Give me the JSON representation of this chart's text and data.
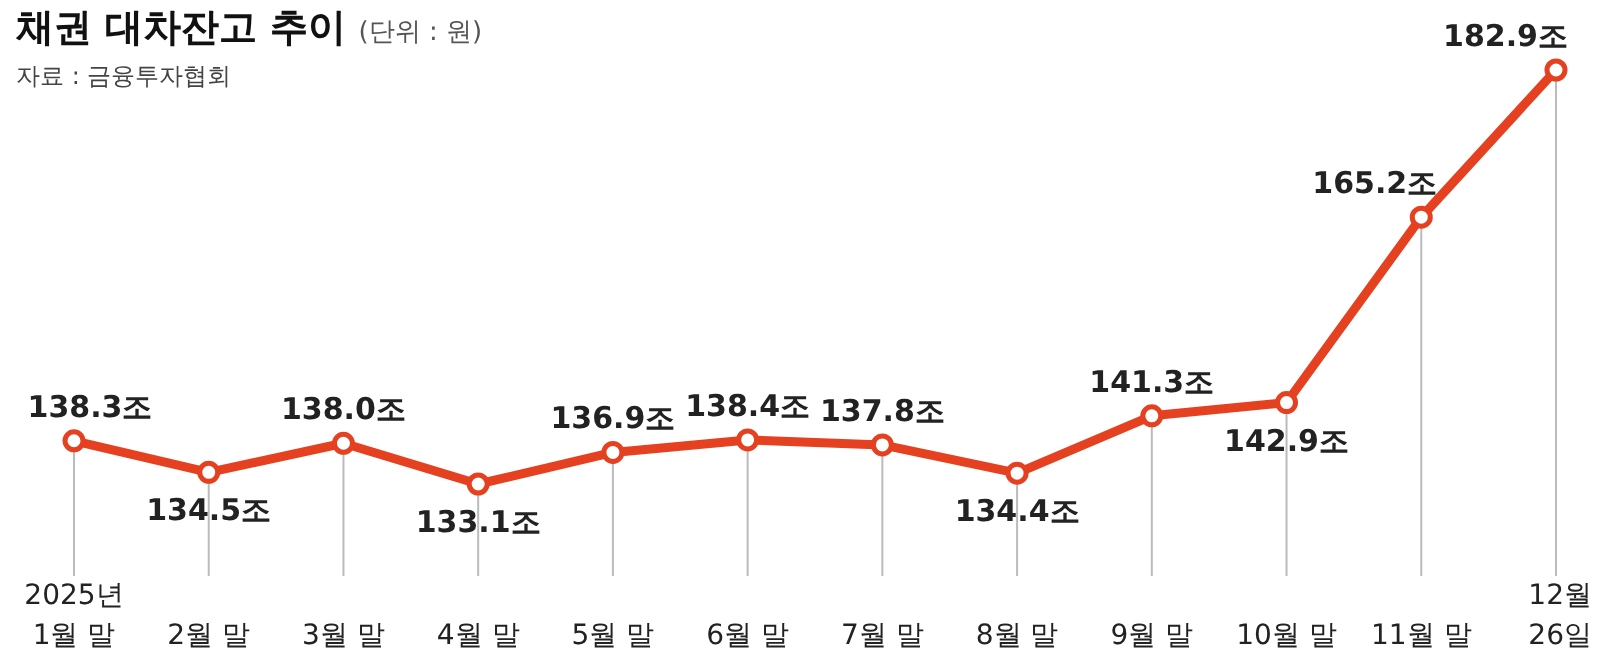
{
  "chart_data": {
    "type": "line",
    "title": "채권 대차잔고 추이",
    "subtitle": "(단위 : 원)",
    "annotations": [
      "자료 : 금융투자협회"
    ],
    "categories": [
      "2025년\n1월 말",
      "2월 말",
      "3월 말",
      "4월 말",
      "5월 말",
      "6월 말",
      "7월 말",
      "8월 말",
      "9월 말",
      "10월 말",
      "11월 말",
      "12월\n26일"
    ],
    "series": [
      {
        "color": "#e5401f",
        "values": [
          138.3,
          134.5,
          138.0,
          133.1,
          136.9,
          138.4,
          137.8,
          134.4,
          141.3,
          142.9,
          165.2,
          182.9
        ],
        "value_labels": [
          "138.3조",
          "134.5조",
          "138.0조",
          "133.1조",
          "136.9조",
          "138.4조",
          "137.8조",
          "134.4조",
          "141.3조",
          "142.9조",
          "165.2조",
          "182.9조"
        ]
      }
    ],
    "grid": "x",
    "marker": "circle",
    "line_style": "solid"
  }
}
